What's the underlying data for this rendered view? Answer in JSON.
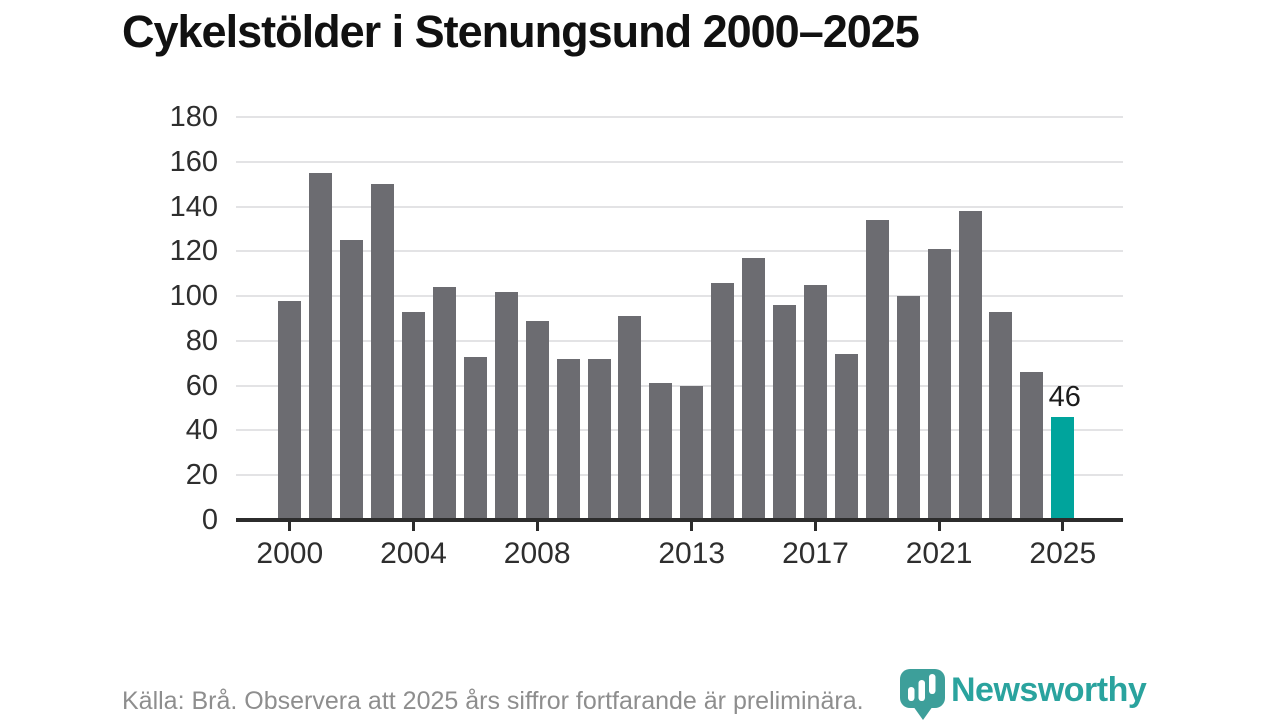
{
  "title": "Cykelstölder i Stenungsund 2000–2025",
  "source_note": "Källa: Brå. Observera att 2025 års siffror fortfarande är preliminära.",
  "logo": {
    "wordmark": "Newsworthy",
    "icon": "newsworthy-speech-bubble-bar-chart-icon"
  },
  "colors": {
    "bar": "#6c6c71",
    "highlight_bar": "#00a49c",
    "gridline": "#e3e3e5",
    "axis": "#2c2c2c",
    "axis_label": "#2e2e2e",
    "title": "#111111",
    "annotation": "#1c1c1c",
    "source_text": "#8e8e8e",
    "logo_icon": "#3d9f9a",
    "logo_text": "#2aa39e"
  },
  "chart_data": {
    "type": "bar",
    "title": "Cykelstölder i Stenungsund 2000–2025",
    "xlabel": "",
    "ylabel": "",
    "x": [
      2000,
      2001,
      2002,
      2003,
      2004,
      2005,
      2006,
      2007,
      2008,
      2009,
      2010,
      2011,
      2012,
      2013,
      2014,
      2015,
      2016,
      2017,
      2018,
      2019,
      2020,
      2021,
      2022,
      2023,
      2024,
      2025
    ],
    "values": [
      98,
      155,
      125,
      150,
      93,
      104,
      73,
      102,
      89,
      72,
      72,
      91,
      61,
      60,
      106,
      117,
      96,
      105,
      74,
      134,
      100,
      121,
      138,
      93,
      66,
      46
    ],
    "highlight_year": 2025,
    "annotation": {
      "year": 2025,
      "text": "46"
    },
    "ylim": [
      0,
      180
    ],
    "yticks": [
      0,
      20,
      40,
      60,
      80,
      100,
      120,
      140,
      160,
      180
    ],
    "xticks": [
      2000,
      2004,
      2008,
      2013,
      2017,
      2021,
      2025
    ],
    "grid": "horizontal",
    "legend": "none"
  }
}
